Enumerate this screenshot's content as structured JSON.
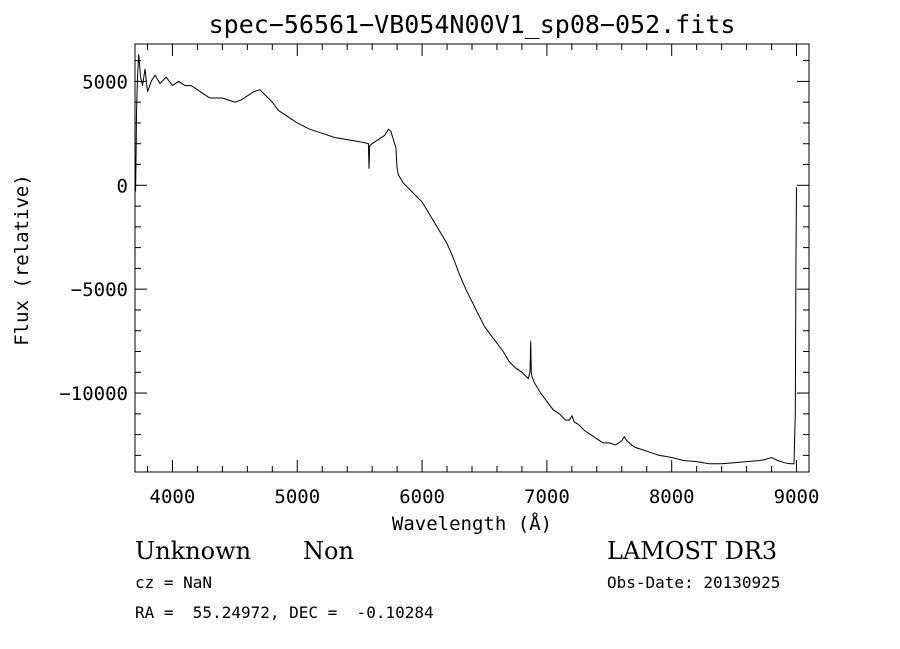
{
  "chart_data": {
    "type": "line",
    "title": "spec−56561−VB054N00V1_sp08−052.fits",
    "xlabel": "Wavelength (Å)",
    "ylabel": "Flux (relative)",
    "xlim": [
      3700,
      9100
    ],
    "ylim": [
      -13800,
      6800
    ],
    "x_ticks": [
      4000,
      5000,
      6000,
      7000,
      8000,
      9000
    ],
    "x_tick_labels": [
      "4000",
      "5000",
      "6000",
      "7000",
      "8000",
      "9000"
    ],
    "y_ticks": [
      5000,
      0,
      -5000,
      -10000
    ],
    "y_tick_labels": [
      "5000",
      "0",
      "−5000",
      "−10000"
    ],
    "grid": false,
    "series": [
      {
        "name": "flux",
        "x": [
          3700,
          3705,
          3710,
          3712,
          3715,
          3720,
          3730,
          3745,
          3760,
          3780,
          3800,
          3830,
          3860,
          3900,
          3950,
          4000,
          4050,
          4100,
          4150,
          4200,
          4250,
          4300,
          4350,
          4400,
          4450,
          4500,
          4550,
          4600,
          4650,
          4700,
          4750,
          4800,
          4850,
          4900,
          4950,
          5000,
          5100,
          5200,
          5300,
          5400,
          5500,
          5570,
          5575,
          5580,
          5600,
          5650,
          5700,
          5730,
          5750,
          5770,
          5790,
          5800,
          5810,
          5830,
          5850,
          5900,
          5950,
          6000,
          6050,
          6100,
          6150,
          6200,
          6250,
          6300,
          6350,
          6400,
          6450,
          6500,
          6550,
          6600,
          6650,
          6700,
          6750,
          6800,
          6850,
          6865,
          6870,
          6875,
          6880,
          6900,
          6950,
          7000,
          7050,
          7100,
          7150,
          7180,
          7200,
          7220,
          7250,
          7300,
          7350,
          7400,
          7450,
          7500,
          7550,
          7600,
          7620,
          7640,
          7660,
          7700,
          7750,
          7800,
          7850,
          7900,
          7950,
          8000,
          8100,
          8200,
          8300,
          8400,
          8500,
          8600,
          8700,
          8750,
          8800,
          8850,
          8900,
          8950,
          8980,
          8990,
          8995,
          9000
        ],
        "y": [
          -100,
          -300,
          2000,
          3500,
          4200,
          5200,
          6300,
          5200,
          4800,
          5600,
          4500,
          5000,
          5300,
          4900,
          5200,
          4800,
          5000,
          4800,
          4800,
          4600,
          4400,
          4200,
          4200,
          4200,
          4100,
          4000,
          4100,
          4300,
          4500,
          4600,
          4300,
          4000,
          3600,
          3400,
          3200,
          3000,
          2700,
          2500,
          2300,
          2200,
          2100,
          2000,
          800,
          1900,
          2000,
          2200,
          2400,
          2700,
          2600,
          2200,
          1800,
          800,
          500,
          300,
          100,
          -200,
          -500,
          -800,
          -1300,
          -1800,
          -2300,
          -2800,
          -3500,
          -4300,
          -5000,
          -5600,
          -6200,
          -6800,
          -7200,
          -7600,
          -8000,
          -8500,
          -8800,
          -9000,
          -9300,
          -9000,
          -7500,
          -9000,
          -9200,
          -9500,
          -10000,
          -10400,
          -10800,
          -11000,
          -11300,
          -11300,
          -11100,
          -11400,
          -11500,
          -11800,
          -12000,
          -12200,
          -12400,
          -12400,
          -12500,
          -12300,
          -12100,
          -12300,
          -12400,
          -12600,
          -12700,
          -12800,
          -12900,
          -13000,
          -13050,
          -13100,
          -13250,
          -13300,
          -13400,
          -13400,
          -13350,
          -13300,
          -13250,
          -13200,
          -13100,
          -13250,
          -13350,
          -13400,
          -13400,
          -11000,
          -4000,
          -100
        ]
      }
    ]
  },
  "info": {
    "object_class": "Unknown",
    "subclass": "Non",
    "survey": "LAMOST DR3",
    "redshift": "cz = NaN",
    "obs_date": "Obs-Date: 20130925",
    "coords": "RA =  55.24972, DEC =  -0.10284"
  }
}
